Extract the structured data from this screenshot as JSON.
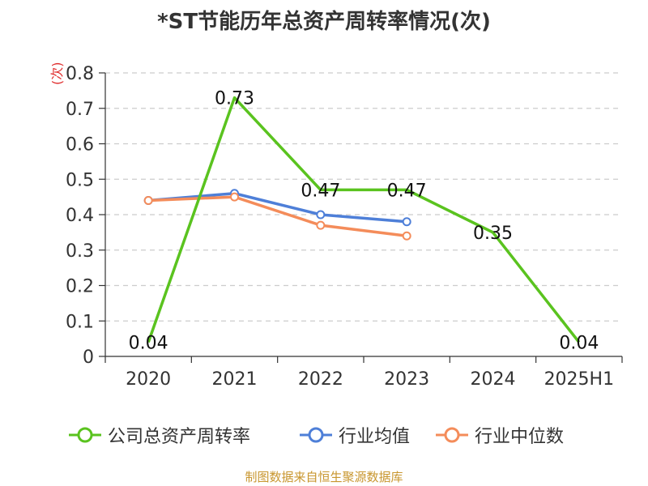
{
  "chart_data": {
    "type": "line",
    "title": "*ST节能历年总资产周转率情况(次)",
    "ylabel": "(次)",
    "xlabel": "",
    "categories": [
      "2020",
      "2021",
      "2022",
      "2023",
      "2024",
      "2025H1"
    ],
    "ylim": [
      0,
      0.8
    ],
    "yticks": [
      "0",
      "0.1",
      "0.2",
      "0.3",
      "0.4",
      "0.5",
      "0.6",
      "0.7",
      "0.8"
    ],
    "grid": true,
    "legend_position": "bottom",
    "series": [
      {
        "name": "公司总资产周转率",
        "color": "#5ac31f",
        "values": [
          0.04,
          0.73,
          0.47,
          0.47,
          0.35,
          0.04
        ],
        "labels": [
          "0.04",
          "0.73",
          "0.47",
          "0.47",
          "0.35",
          "0.04"
        ]
      },
      {
        "name": "行业均值",
        "color": "#4e7fd8",
        "values": [
          0.44,
          0.46,
          0.4,
          0.38,
          null,
          null
        ]
      },
      {
        "name": "行业中位数",
        "color": "#f48c5a",
        "values": [
          0.44,
          0.45,
          0.37,
          0.34,
          null,
          null
        ]
      }
    ]
  },
  "source": "制图数据来自恒生聚源数据库"
}
